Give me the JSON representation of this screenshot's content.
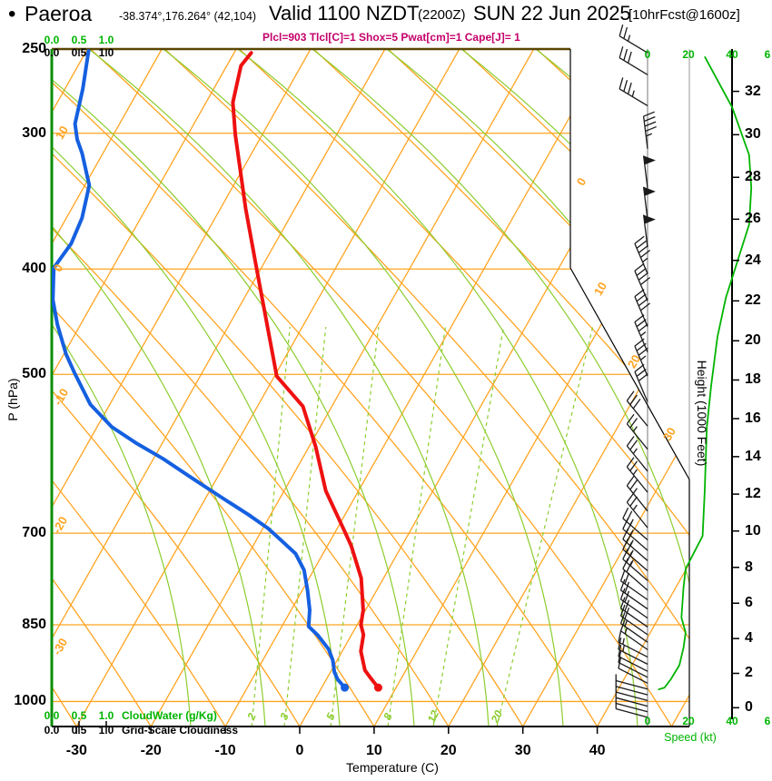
{
  "header": {
    "bullet": "•",
    "station": "Paeroa",
    "coords": "-38.374°,176.264° (42,104)",
    "valid": "Valid 1100 NZDT",
    "valid_z": "(2200Z)",
    "date": "SUN 22 Jun 2025",
    "forecast": "[10hrFcst@1600z]",
    "params_line": "Plcl=903 Tlcl[C]=1 Shox=5 Pwat[cm]=1 Cape[J]= 1"
  },
  "parameters": {
    "Plcl": "903",
    "Tlcl_C": "1",
    "Shox": "5",
    "Pwat_cm": "1",
    "Cape_J": "1"
  },
  "axes": {
    "pressure_title": "P (hPa)",
    "pressure_ticks": [
      "250",
      "300",
      "400",
      "500",
      "700",
      "850",
      "1000"
    ],
    "temperature_title": "Temperature (C)",
    "temperature_ticks": [
      "-30",
      "-20",
      "-10",
      "0",
      "10",
      "20",
      "30",
      "40"
    ],
    "height_title": "Height (1000 Feet)",
    "height_ticks": [
      "0",
      "2",
      "4",
      "6",
      "8",
      "10",
      "12",
      "14",
      "16",
      "18",
      "20",
      "22",
      "24",
      "26",
      "28",
      "30",
      "32"
    ],
    "speed_title": "Speed (kt)",
    "speed_ticks": [
      "0",
      "20",
      "40",
      "6"
    ],
    "cloud_scale_ticks": [
      "0.0",
      "0.5",
      "1.0"
    ],
    "cloudwater_label": "CloudWater (g/Kg)",
    "cloudiness_label": "Grid-Scale Cloudiness",
    "isotherm_labels_left": [
      "10",
      "0",
      "-10",
      "-20",
      "-30"
    ],
    "isotherm_labels_right": [
      "0",
      "10",
      "20",
      "30"
    ],
    "mixing_ratio_labels": [
      "2",
      "3",
      "5",
      "8",
      "12",
      "20"
    ]
  },
  "colors": {
    "isotherm_orange": "#ffa421",
    "adiabat_green": "#8ccd2e",
    "axis_green": "#0a8f0a",
    "bright_green": "#00b400",
    "temperature_red": "#ee1111",
    "dewpoint_blue": "#1560e0",
    "params_magenta": "#c4006a",
    "top_border_olive": "#5a4500",
    "barb_black": "#1a1a1a"
  },
  "chart_data": {
    "type": "line",
    "subtype": "skew-t log-p atmospheric sounding",
    "title": "Paeroa sounding valid 1100 NZDT (2200Z) SUN 22 Jun 2025, 10 hr forecast from 1600z",
    "xlabel": "Temperature (C)",
    "ylabel": "P (hPa)",
    "x_range_c": [
      -35,
      45
    ],
    "pressure_range_hpa": [
      250,
      1050
    ],
    "grid": "skew-t: orange isotherms and dry adiabats, green moist adiabats and dashed mixing-ratio lines",
    "legend_position": "none",
    "series": [
      {
        "name": "temperature_c_vs_hpa",
        "points": [
          [
            971,
            7.6
          ],
          [
            952,
            5.9
          ],
          [
            936,
            4.5
          ],
          [
            899,
            2.5
          ],
          [
            868,
            1.6
          ],
          [
            850,
            0.5
          ],
          [
            824,
            -0.3
          ],
          [
            770,
            -3.0
          ],
          [
            719,
            -6.8
          ],
          [
            695,
            -9.0
          ],
          [
            640,
            -14.4
          ],
          [
            583,
            -19.1
          ],
          [
            535,
            -23.9
          ],
          [
            502,
            -29.7
          ],
          [
            452,
            -34.7
          ],
          [
            402,
            -40.3
          ],
          [
            352,
            -46.6
          ],
          [
            301,
            -53.6
          ],
          [
            281,
            -56.4
          ],
          [
            260,
            -58.1
          ],
          [
            253,
            -57.7
          ]
        ]
      },
      {
        "name": "dewpoint_c_vs_hpa",
        "points": [
          [
            971,
            3.1
          ],
          [
            954,
            1.5
          ],
          [
            939,
            0.5
          ],
          [
            916,
            -0.6
          ],
          [
            895,
            -2.0
          ],
          [
            869,
            -4.5
          ],
          [
            853,
            -6.4
          ],
          [
            824,
            -7.5
          ],
          [
            790,
            -9.3
          ],
          [
            757,
            -11.3
          ],
          [
            731,
            -13.7
          ],
          [
            711,
            -16.6
          ],
          [
            693,
            -19.3
          ],
          [
            673,
            -23.0
          ],
          [
            648,
            -28.1
          ],
          [
            624,
            -33.1
          ],
          [
            598,
            -38.7
          ],
          [
            578,
            -43.6
          ],
          [
            559,
            -48.0
          ],
          [
            533,
            -52.6
          ],
          [
            498,
            -57.2
          ],
          [
            479,
            -59.7
          ],
          [
            450,
            -63.1
          ],
          [
            427,
            -65.6
          ],
          [
            399,
            -67.9
          ],
          [
            379,
            -67.4
          ],
          [
            359,
            -67.9
          ],
          [
            335,
            -69.4
          ],
          [
            313,
            -72.8
          ],
          [
            304,
            -74.5
          ],
          [
            294,
            -76.0
          ],
          [
            273,
            -77.6
          ],
          [
            252,
            -79.7
          ]
        ]
      },
      {
        "name": "wind_speed_kt_vs_hpa",
        "points": [
          [
            975,
            5
          ],
          [
            971,
            8
          ],
          [
            954,
            11
          ],
          [
            926,
            15
          ],
          [
            892,
            17
          ],
          [
            864,
            18
          ],
          [
            837,
            16
          ],
          [
            785,
            17
          ],
          [
            755,
            18
          ],
          [
            704,
            26
          ],
          [
            641,
            27
          ],
          [
            560,
            28
          ],
          [
            513,
            30
          ],
          [
            462,
            33
          ],
          [
            425,
            37
          ],
          [
            364,
            48
          ],
          [
            337,
            49
          ],
          [
            314,
            48
          ],
          [
            284,
            40
          ],
          [
            255,
            27
          ]
        ]
      }
    ],
    "wind_barbs_p_kt": [
      [
        253,
        25
      ],
      [
        265,
        30
      ],
      [
        283,
        35
      ],
      [
        310,
        45
      ],
      [
        337,
        50
      ],
      [
        360,
        50
      ],
      [
        382,
        50
      ],
      [
        404,
        45
      ],
      [
        428,
        42
      ],
      [
        452,
        40
      ],
      [
        477,
        38
      ],
      [
        502,
        35
      ],
      [
        530,
        32
      ],
      [
        558,
        30
      ],
      [
        586,
        28
      ],
      [
        614,
        28
      ],
      [
        642,
        27
      ],
      [
        668,
        27
      ],
      [
        692,
        26
      ],
      [
        710,
        26
      ],
      [
        726,
        25
      ],
      [
        742,
        25
      ],
      [
        758,
        24
      ],
      [
        774,
        24
      ],
      [
        790,
        23
      ],
      [
        806,
        22
      ],
      [
        822,
        22
      ],
      [
        838,
        21
      ],
      [
        854,
        20
      ],
      [
        868,
        19
      ],
      [
        882,
        18
      ],
      [
        896,
        17
      ],
      [
        910,
        16
      ],
      [
        924,
        15
      ],
      [
        938,
        13
      ],
      [
        950,
        12
      ],
      [
        962,
        10
      ],
      [
        974,
        8
      ],
      [
        986,
        7
      ],
      [
        998,
        6
      ],
      [
        1010,
        5
      ],
      [
        1022,
        5
      ],
      [
        1034,
        4
      ]
    ],
    "surface_point": {
      "pressure_hpa": 971,
      "temperature_c": 7.6,
      "dewpoint_c": 3.1
    },
    "isobar_lines_hpa": [
      300,
      400,
      500,
      700,
      850,
      1000
    ],
    "mixing_ratio_g_kg": [
      2,
      3,
      5,
      8,
      12,
      20
    ],
    "cloudwater_profile": "zero through depth (flat on left axis)",
    "cloudiness_profile": "zero through depth (flat on left axis)"
  }
}
